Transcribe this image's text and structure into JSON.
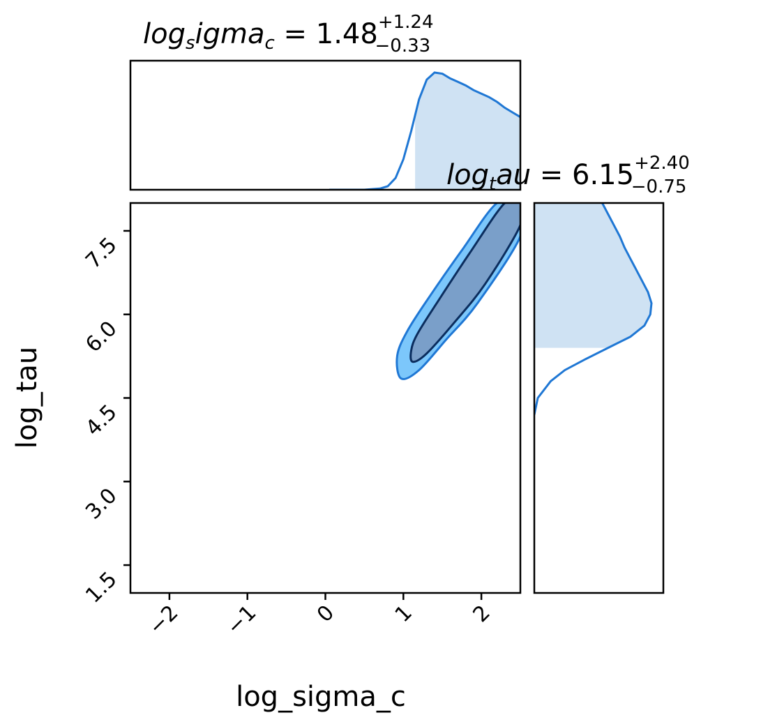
{
  "chart_data": {
    "type": "corner",
    "colors": {
      "line": "#1f77d4",
      "fill": "#cfe2f3",
      "inner_contour_fill": "#7a9fc9",
      "outer_contour_fill": "#7cc7fb",
      "inner_contour_edge": "#0b2d5e"
    },
    "parameters": [
      {
        "name": "log_sigma_c",
        "title": {
          "base": "log",
          "sub": "s",
          "mid": "igma",
          "sub2": "c",
          "median": "1.48",
          "plus": "+1.24",
          "minus": "−0.33"
        },
        "range": [
          -2.5,
          2.5
        ],
        "ticks": [
          -2,
          -1,
          0,
          1,
          2
        ],
        "tick_labels": [
          "−2",
          "−1",
          "0",
          "1",
          "2"
        ],
        "median": 1.48,
        "plus": 1.24,
        "minus": 0.33,
        "marginal_x": [
          0.05,
          0.5,
          0.7,
          0.8,
          0.9,
          1.0,
          1.1,
          1.2,
          1.3,
          1.4,
          1.5,
          1.6,
          1.7,
          1.8,
          1.9,
          2.0,
          2.1,
          2.2,
          2.3,
          2.4,
          2.5
        ],
        "marginal_density": [
          0.0,
          0.0,
          0.01,
          0.03,
          0.1,
          0.26,
          0.5,
          0.77,
          0.94,
          1.0,
          0.99,
          0.95,
          0.92,
          0.89,
          0.85,
          0.82,
          0.79,
          0.75,
          0.7,
          0.66,
          0.62
        ],
        "shaded_from": 1.15
      },
      {
        "name": "log_tau",
        "title": {
          "base": "log",
          "sub": "t",
          "mid": "au",
          "median": "6.15",
          "plus": "+2.40",
          "minus": "−0.75"
        },
        "range": [
          1.0,
          8.0
        ],
        "ticks": [
          1.5,
          3.0,
          4.5,
          6.0,
          7.5
        ],
        "tick_labels": [
          "1.5",
          "3.0",
          "4.5",
          "6.0",
          "7.5"
        ],
        "median": 6.15,
        "plus": 2.4,
        "minus": 0.75,
        "marginal_y": [
          4.2,
          4.5,
          4.8,
          5.0,
          5.2,
          5.4,
          5.6,
          5.8,
          6.0,
          6.2,
          6.4,
          6.6,
          6.8,
          7.0,
          7.2,
          7.4,
          7.6,
          7.8,
          8.0
        ],
        "marginal_density": [
          0.0,
          0.03,
          0.14,
          0.26,
          0.44,
          0.63,
          0.82,
          0.94,
          0.99,
          1.0,
          0.97,
          0.92,
          0.87,
          0.82,
          0.77,
          0.73,
          0.68,
          0.63,
          0.58
        ],
        "shaded_from": 5.4
      }
    ],
    "contours": {
      "outer": [
        [
          0.97,
          4.85
        ],
        [
          1.2,
          5.0
        ],
        [
          1.55,
          5.55
        ],
        [
          1.95,
          6.2
        ],
        [
          2.5,
          7.4
        ],
        [
          2.5,
          8.0
        ],
        [
          2.2,
          8.0
        ],
        [
          1.75,
          7.15
        ],
        [
          1.35,
          6.35
        ],
        [
          1.05,
          5.7
        ],
        [
          0.92,
          5.25
        ]
      ],
      "inner": [
        [
          1.12,
          5.15
        ],
        [
          1.3,
          5.3
        ],
        [
          1.65,
          5.85
        ],
        [
          2.05,
          6.55
        ],
        [
          2.5,
          7.6
        ],
        [
          2.5,
          8.0
        ],
        [
          2.3,
          8.0
        ],
        [
          1.85,
          7.1
        ],
        [
          1.45,
          6.25
        ],
        [
          1.18,
          5.65
        ],
        [
          1.1,
          5.35
        ]
      ]
    },
    "xlabel": "log_sigma_c",
    "ylabel": "log_tau"
  }
}
